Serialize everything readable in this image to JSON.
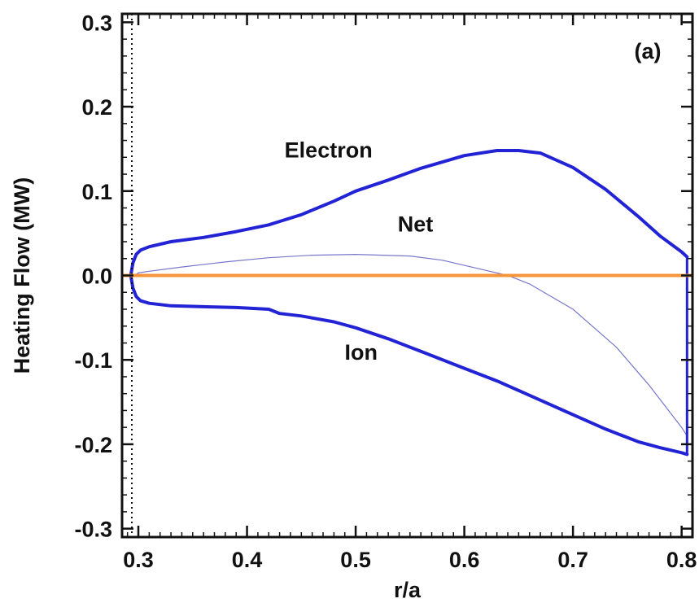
{
  "chart_data": {
    "type": "line",
    "title": "",
    "panel_label": "(a)",
    "xlabel": "r/a",
    "ylabel": "Heating Flow (MW)",
    "xlim": [
      0.285,
      0.81
    ],
    "ylim": [
      -0.31,
      0.31
    ],
    "xticks": [
      0.3,
      0.4,
      0.5,
      0.6,
      0.7,
      0.8
    ],
    "xtick_labels": [
      "0.3",
      "0.4",
      "0.5",
      "0.6",
      "0.7",
      "0.8"
    ],
    "yticks": [
      -0.3,
      -0.2,
      -0.1,
      0.0,
      0.1,
      0.2,
      0.3
    ],
    "ytick_labels": [
      "-0.3",
      "-0.2",
      "-0.1",
      "0.0",
      "0.1",
      "0.2",
      "0.3"
    ],
    "grid": false,
    "legend": "none",
    "vertical_reference_line": {
      "x": 0.294,
      "style": "dotted"
    },
    "horizontal_reference_line": {
      "y": 0.0,
      "color": "#f5953a"
    },
    "series": [
      {
        "name": "Electron",
        "color": "#2323d6",
        "line_width": "thick",
        "x": [
          0.293,
          0.295,
          0.298,
          0.302,
          0.31,
          0.33,
          0.36,
          0.39,
          0.42,
          0.43,
          0.45,
          0.48,
          0.5,
          0.53,
          0.56,
          0.6,
          0.63,
          0.65,
          0.67,
          0.7,
          0.73,
          0.76,
          0.78,
          0.8,
          0.805
        ],
        "y": [
          0.0,
          0.015,
          0.025,
          0.03,
          0.034,
          0.04,
          0.045,
          0.052,
          0.06,
          0.064,
          0.072,
          0.088,
          0.1,
          0.113,
          0.127,
          0.142,
          0.148,
          0.148,
          0.145,
          0.128,
          0.102,
          0.07,
          0.047,
          0.028,
          0.022
        ]
      },
      {
        "name": "Net",
        "color": "#7777cc",
        "line_width": "thin",
        "x": [
          0.293,
          0.3,
          0.31,
          0.34,
          0.38,
          0.42,
          0.46,
          0.5,
          0.55,
          0.58,
          0.6,
          0.62,
          0.64,
          0.66,
          0.7,
          0.74,
          0.77,
          0.8,
          0.805
        ],
        "y": [
          -0.003,
          0.003,
          0.005,
          0.01,
          0.016,
          0.021,
          0.024,
          0.025,
          0.023,
          0.018,
          0.012,
          0.006,
          0.0,
          -0.01,
          -0.04,
          -0.085,
          -0.13,
          -0.18,
          -0.19
        ]
      },
      {
        "name": "Ion",
        "color": "#2323d6",
        "line_width": "thick",
        "x": [
          0.293,
          0.295,
          0.298,
          0.302,
          0.31,
          0.33,
          0.36,
          0.39,
          0.42,
          0.43,
          0.45,
          0.48,
          0.5,
          0.53,
          0.56,
          0.6,
          0.63,
          0.66,
          0.7,
          0.73,
          0.76,
          0.78,
          0.8,
          0.805
        ],
        "y": [
          0.0,
          -0.015,
          -0.025,
          -0.03,
          -0.033,
          -0.036,
          -0.037,
          -0.038,
          -0.04,
          -0.045,
          -0.048,
          -0.055,
          -0.062,
          -0.075,
          -0.09,
          -0.11,
          -0.125,
          -0.142,
          -0.165,
          -0.182,
          -0.197,
          -0.204,
          -0.21,
          -0.212
        ]
      }
    ],
    "annotations": [
      {
        "text": "Electron",
        "x": 0.475,
        "y": 0.14
      },
      {
        "text": "Net",
        "x": 0.555,
        "y": 0.052
      },
      {
        "text": "Ion",
        "x": 0.505,
        "y": -0.1
      }
    ]
  }
}
